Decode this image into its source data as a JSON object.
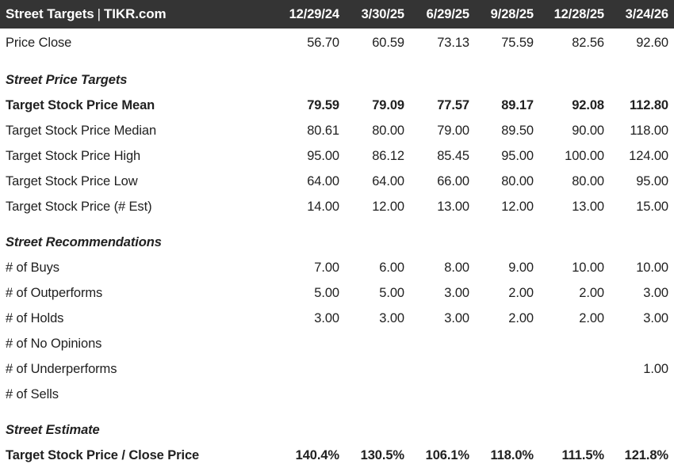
{
  "header": {
    "title_left": "Street Targets",
    "separator": "|",
    "title_right": "TIKR.com",
    "dates": [
      "12/29/24",
      "3/30/25",
      "6/29/25",
      "9/28/25",
      "12/28/25",
      "3/24/26"
    ]
  },
  "colors": {
    "header_background": "#343434",
    "header_text": "#ffffff",
    "body_text": "#212121",
    "background": "#ffffff"
  },
  "table": {
    "rows": [
      {
        "type": "data",
        "bold": false,
        "first": true,
        "label": "Price Close",
        "values": [
          "56.70",
          "60.59",
          "73.13",
          "75.59",
          "82.56",
          "92.60"
        ]
      },
      {
        "type": "spacer"
      },
      {
        "type": "section",
        "label": "Street Price Targets"
      },
      {
        "type": "data",
        "bold": true,
        "label": "Target Stock Price Mean",
        "values": [
          "79.59",
          "79.09",
          "77.57",
          "89.17",
          "92.08",
          "112.80"
        ]
      },
      {
        "type": "data",
        "bold": false,
        "label": "Target Stock Price Median",
        "values": [
          "80.61",
          "80.00",
          "79.00",
          "89.50",
          "90.00",
          "118.00"
        ]
      },
      {
        "type": "data",
        "bold": false,
        "label": "Target Stock Price High",
        "values": [
          "95.00",
          "86.12",
          "85.45",
          "95.00",
          "100.00",
          "124.00"
        ]
      },
      {
        "type": "data",
        "bold": false,
        "label": "Target Stock Price Low",
        "values": [
          "64.00",
          "64.00",
          "66.00",
          "80.00",
          "80.00",
          "95.00"
        ]
      },
      {
        "type": "data",
        "bold": false,
        "label": "Target Stock Price (# Est)",
        "values": [
          "14.00",
          "12.00",
          "13.00",
          "12.00",
          "13.00",
          "15.00"
        ]
      },
      {
        "type": "spacer"
      },
      {
        "type": "section",
        "label": "Street Recommendations"
      },
      {
        "type": "data",
        "bold": false,
        "label": "# of Buys",
        "values": [
          "7.00",
          "6.00",
          "8.00",
          "9.00",
          "10.00",
          "10.00"
        ]
      },
      {
        "type": "data",
        "bold": false,
        "label": "# of Outperforms",
        "values": [
          "5.00",
          "5.00",
          "3.00",
          "2.00",
          "2.00",
          "3.00"
        ]
      },
      {
        "type": "data",
        "bold": false,
        "label": "# of Holds",
        "values": [
          "3.00",
          "3.00",
          "3.00",
          "2.00",
          "2.00",
          "3.00"
        ]
      },
      {
        "type": "data",
        "bold": false,
        "label": "# of No Opinions",
        "values": [
          "",
          "",
          "",
          "",
          "",
          ""
        ]
      },
      {
        "type": "data",
        "bold": false,
        "label": "# of Underperforms",
        "values": [
          "",
          "",
          "",
          "",
          "",
          "1.00"
        ]
      },
      {
        "type": "data",
        "bold": false,
        "label": "# of Sells",
        "values": [
          "",
          "",
          "",
          "",
          "",
          ""
        ]
      },
      {
        "type": "spacer"
      },
      {
        "type": "section",
        "label": "Street Estimate"
      },
      {
        "type": "data",
        "bold": true,
        "label": "Target Stock Price / Close Price",
        "values": [
          "140.4%",
          "130.5%",
          "106.1%",
          "118.0%",
          "111.5%",
          "121.8%"
        ]
      }
    ]
  }
}
